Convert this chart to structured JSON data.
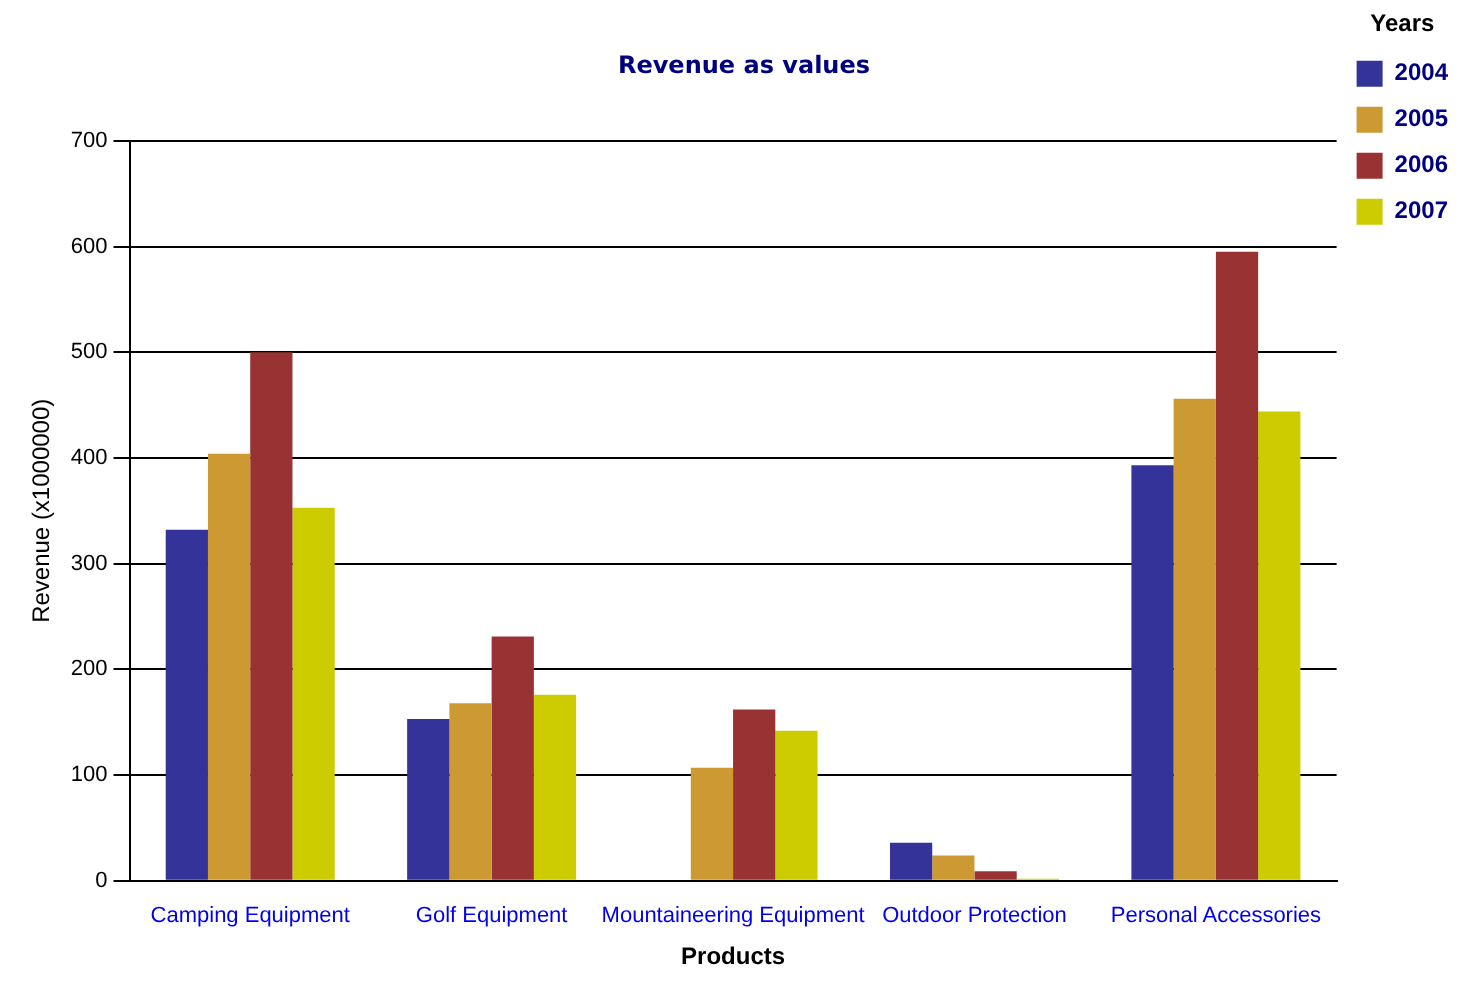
{
  "chart_data": {
    "type": "bar",
    "title": "Revenue as values",
    "xlabel": "Products",
    "ylabel": "Revenue (x1000000)",
    "legend_title": "Years",
    "legend": "top right",
    "grid": "y",
    "categories": [
      "Camping Equipment",
      "Golf Equipment",
      "Mountaineering Equipment",
      "Outdoor Protection",
      "Personal Accessories"
    ],
    "series": [
      {
        "name": "2004",
        "color": "#333399",
        "values": [
          332,
          153,
          0,
          36,
          393
        ]
      },
      {
        "name": "2005",
        "color": "#cc9933",
        "values": [
          404,
          168,
          107,
          24,
          456
        ]
      },
      {
        "name": "2006",
        "color": "#993333",
        "values": [
          500,
          231,
          162,
          9,
          595
        ]
      },
      {
        "name": "2007",
        "color": "#cccc00",
        "values": [
          353,
          176,
          142,
          2,
          444
        ]
      }
    ],
    "ylim": [
      0,
      700
    ],
    "yticks": [
      0,
      100,
      200,
      300,
      400,
      500,
      600,
      700
    ]
  }
}
